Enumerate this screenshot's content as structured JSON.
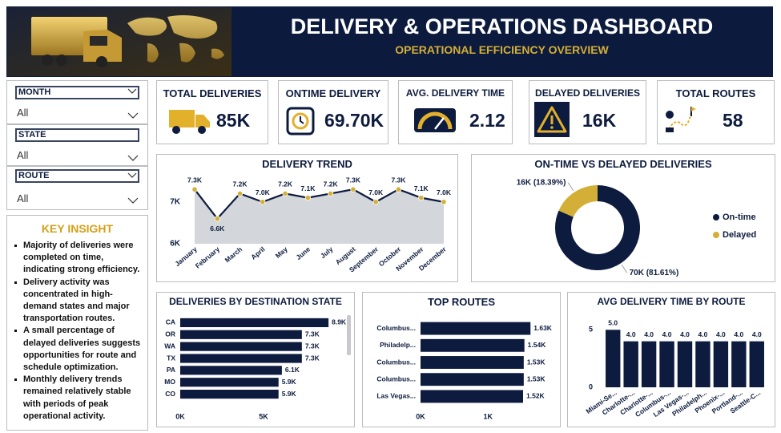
{
  "header": {
    "title": "DELIVERY & OPERATIONS DASHBOARD",
    "subtitle": "OPERATIONAL EFFICIENCY OVERVIEW"
  },
  "filters": [
    {
      "label": "MONTH",
      "value": "All"
    },
    {
      "label": "STATE",
      "value": "All"
    },
    {
      "label": "ROUTE",
      "value": "All"
    }
  ],
  "kpis": [
    {
      "label": "TOTAL DELIVERIES",
      "value": "85K"
    },
    {
      "label": "ONTIME DELIVERY",
      "value": "69.70K"
    },
    {
      "label": "AVG. DELIVERY TIME",
      "value": "2.12"
    },
    {
      "label": "DELAYED DELIVERIES",
      "value": "16K"
    },
    {
      "label": "TOTAL ROUTES",
      "value": "58"
    }
  ],
  "insight": {
    "title": "KEY INSIGHT",
    "bullets": [
      "Majority of deliveries were completed on time, indicating strong efficiency.",
      "Delivery activity was concentrated in high-demand states and major transportation routes.",
      "A small percentage of delayed deliveries suggests opportunities for route and schedule optimization.",
      "Monthly delivery trends remained relatively stable with periods of peak operational activity."
    ]
  },
  "chart_data": [
    {
      "type": "line",
      "title": "DELIVERY TREND",
      "categories": [
        "January",
        "February",
        "March",
        "April",
        "May",
        "June",
        "July",
        "August",
        "September",
        "October",
        "November",
        "December"
      ],
      "values": [
        7300,
        6600,
        7200,
        7000,
        7200,
        7100,
        7200,
        7300,
        7000,
        7300,
        7100,
        7000
      ],
      "value_labels": [
        "7.3K",
        "6.6K",
        "7.2K",
        "7.0K",
        "7.2K",
        "7.1K",
        "7.2K",
        "7.3K",
        "7.0K",
        "7.3K",
        "7.1K",
        "7.0K"
      ],
      "ylim": [
        6000,
        7400
      ],
      "yticks": [
        {
          "value": 6000,
          "label": "6K"
        },
        {
          "value": 7000,
          "label": "7K"
        }
      ],
      "color": "#0d1b3e",
      "marker_color": "#d4af37",
      "area_color": "#d3d6db"
    },
    {
      "type": "pie",
      "title": "ON-TIME VS DELAYED DELIVERIES",
      "donut": true,
      "legend": "right",
      "categories": [
        "On-time",
        "Delayed"
      ],
      "values": [
        81.61,
        18.39
      ],
      "value_labels": [
        "70K (81.61%)",
        "16K (18.39%)"
      ],
      "colors": [
        "#0d1b3e",
        "#d4af37"
      ]
    },
    {
      "type": "bar",
      "horizontal": true,
      "title": "DELIVERIES BY DESTINATION STATE",
      "categories": [
        "CA",
        "OR",
        "WA",
        "TX",
        "PA",
        "MO",
        "CO"
      ],
      "values": [
        8900,
        7300,
        7300,
        7300,
        6100,
        5900,
        5900
      ],
      "value_labels": [
        "8.9K",
        "7.3K",
        "7.3K",
        "7.3K",
        "6.1K",
        "5.9K",
        "5.9K"
      ],
      "xlim": [
        0,
        10000
      ],
      "xticks": [
        {
          "value": 0,
          "label": "0K"
        },
        {
          "value": 5000,
          "label": "5K"
        }
      ],
      "color": "#0d1b3e"
    },
    {
      "type": "bar",
      "horizontal": true,
      "title": "TOP ROUTES",
      "categories": [
        "Columbus...",
        "Philadelp...",
        "Columbus...",
        "Columbus...",
        "Las Vegas..."
      ],
      "values": [
        1630,
        1540,
        1530,
        1530,
        1520
      ],
      "value_labels": [
        "1.63K",
        "1.54K",
        "1.53K",
        "1.53K",
        "1.52K"
      ],
      "xlim": [
        0,
        1900
      ],
      "xticks": [
        {
          "value": 0,
          "label": "0K"
        },
        {
          "value": 1000,
          "label": "1K"
        }
      ],
      "color": "#0d1b3e"
    },
    {
      "type": "bar",
      "horizontal": false,
      "title": "AVG DELIVERY TIME BY ROUTE",
      "categories": [
        "Miami-Se...",
        "Charlotte-...",
        "Charlotte-...",
        "Columbus-...",
        "Las Vegas-...",
        "Philadelph...",
        "Phoenix-...",
        "Portland-...",
        "Seattle-C..."
      ],
      "values": [
        5.0,
        4.0,
        4.0,
        4.0,
        4.0,
        4.0,
        4.0,
        4.0,
        4.0
      ],
      "value_labels": [
        "5.0",
        "4.0",
        "4.0",
        "4.0",
        "4.0",
        "4.0",
        "4.0",
        "4.0",
        "4.0"
      ],
      "ylim": [
        0,
        5.3
      ],
      "yticks": [
        0,
        5
      ],
      "color": "#0d1b3e"
    }
  ]
}
